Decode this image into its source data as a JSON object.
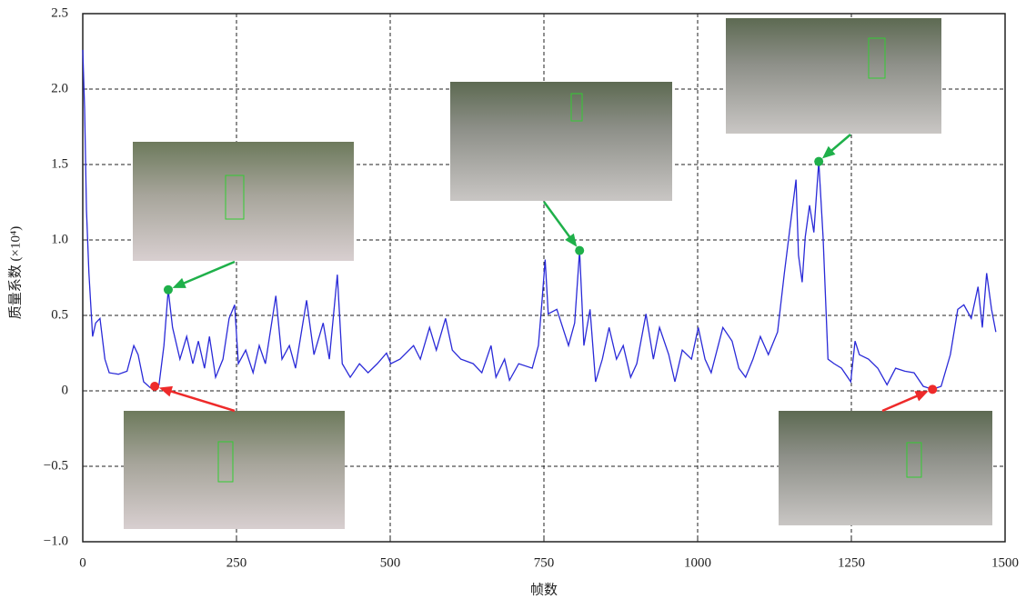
{
  "chart_data": {
    "type": "line",
    "xlabel": "帧数",
    "ylabel": "质量系数 (×10⁴)",
    "xlim": [
      0,
      1500
    ],
    "xticks": [
      0,
      250,
      500,
      750,
      1000,
      1250,
      1500
    ],
    "ylim": [
      -1.0,
      2.5
    ],
    "yticks": [
      {
        "value": -1.0,
        "label": "−1.0"
      },
      {
        "value": -0.5,
        "label": "−0.5"
      },
      0,
      0.5,
      {
        "value": 1.0,
        "label": "1.0"
      },
      1.5,
      {
        "value": 2.0,
        "label": "2.0"
      },
      2.5
    ],
    "grid": true,
    "x": [
      0,
      3,
      6,
      10,
      16,
      21,
      28,
      36,
      43,
      58,
      72,
      83,
      90,
      99,
      110,
      117,
      124,
      132,
      139,
      146,
      158,
      169,
      179,
      188,
      198,
      206,
      216,
      228,
      238,
      247,
      253,
      265,
      277,
      287,
      297,
      314,
      324,
      336,
      346,
      364,
      376,
      391,
      401,
      414,
      422,
      435,
      450,
      464,
      479,
      494,
      501,
      516,
      538,
      549,
      564,
      575,
      590,
      601,
      615,
      635,
      649,
      664,
      672,
      686,
      694,
      709,
      731,
      741,
      747,
      752,
      757,
      771,
      790,
      800,
      808,
      815,
      825,
      834,
      845,
      856,
      868,
      879,
      891,
      901,
      916,
      928,
      938,
      953,
      963,
      975,
      990,
      1001,
      1012,
      1022,
      1041,
      1056,
      1067,
      1078,
      1090,
      1102,
      1115,
      1130,
      1141,
      1152,
      1160,
      1164,
      1170,
      1175,
      1182,
      1189,
      1197,
      1204,
      1212,
      1222,
      1234,
      1249,
      1256,
      1263,
      1278,
      1293,
      1308,
      1322,
      1337,
      1352,
      1367,
      1382,
      1396,
      1411,
      1423,
      1433,
      1445,
      1456,
      1463,
      1470,
      1478,
      1485
    ],
    "series": [
      {
        "color": "#2a2ad8",
        "values": [
          2.26,
          1.87,
          1.2,
          0.78,
          0.36,
          0.45,
          0.48,
          0.21,
          0.12,
          0.11,
          0.13,
          0.3,
          0.24,
          0.06,
          0.02,
          0.03,
          0.04,
          0.3,
          0.67,
          0.42,
          0.21,
          0.36,
          0.18,
          0.33,
          0.15,
          0.36,
          0.09,
          0.21,
          0.48,
          0.57,
          0.18,
          0.27,
          0.12,
          0.3,
          0.18,
          0.63,
          0.21,
          0.3,
          0.15,
          0.6,
          0.24,
          0.45,
          0.21,
          0.77,
          0.18,
          0.09,
          0.18,
          0.12,
          0.18,
          0.25,
          0.18,
          0.21,
          0.3,
          0.21,
          0.42,
          0.27,
          0.48,
          0.27,
          0.21,
          0.18,
          0.12,
          0.3,
          0.09,
          0.21,
          0.07,
          0.18,
          0.15,
          0.3,
          0.6,
          0.87,
          0.51,
          0.54,
          0.3,
          0.45,
          0.93,
          0.3,
          0.54,
          0.06,
          0.21,
          0.42,
          0.21,
          0.3,
          0.09,
          0.18,
          0.51,
          0.21,
          0.42,
          0.24,
          0.06,
          0.27,
          0.21,
          0.42,
          0.21,
          0.12,
          0.42,
          0.33,
          0.15,
          0.09,
          0.21,
          0.36,
          0.24,
          0.39,
          0.78,
          1.14,
          1.4,
          0.9,
          0.72,
          1.02,
          1.23,
          1.05,
          1.52,
          1.02,
          0.21,
          0.18,
          0.15,
          0.06,
          0.33,
          0.24,
          0.21,
          0.15,
          0.04,
          0.15,
          0.13,
          0.12,
          0.03,
          0.01,
          0.03,
          0.24,
          0.54,
          0.57,
          0.48,
          0.69,
          0.42,
          0.78,
          0.54,
          0.39
        ]
      }
    ],
    "points": [
      {
        "x": 139,
        "y": 0.67,
        "color": "#1fb04a"
      },
      {
        "x": 808,
        "y": 0.93,
        "color": "#1fb04a"
      },
      {
        "x": 1197,
        "y": 1.52,
        "color": "#1fb04a"
      },
      {
        "x": 117,
        "y": 0.03,
        "color": "#ee2a2a"
      },
      {
        "x": 1382,
        "y": 0.01,
        "color": "#ee2a2a"
      }
    ]
  }
}
